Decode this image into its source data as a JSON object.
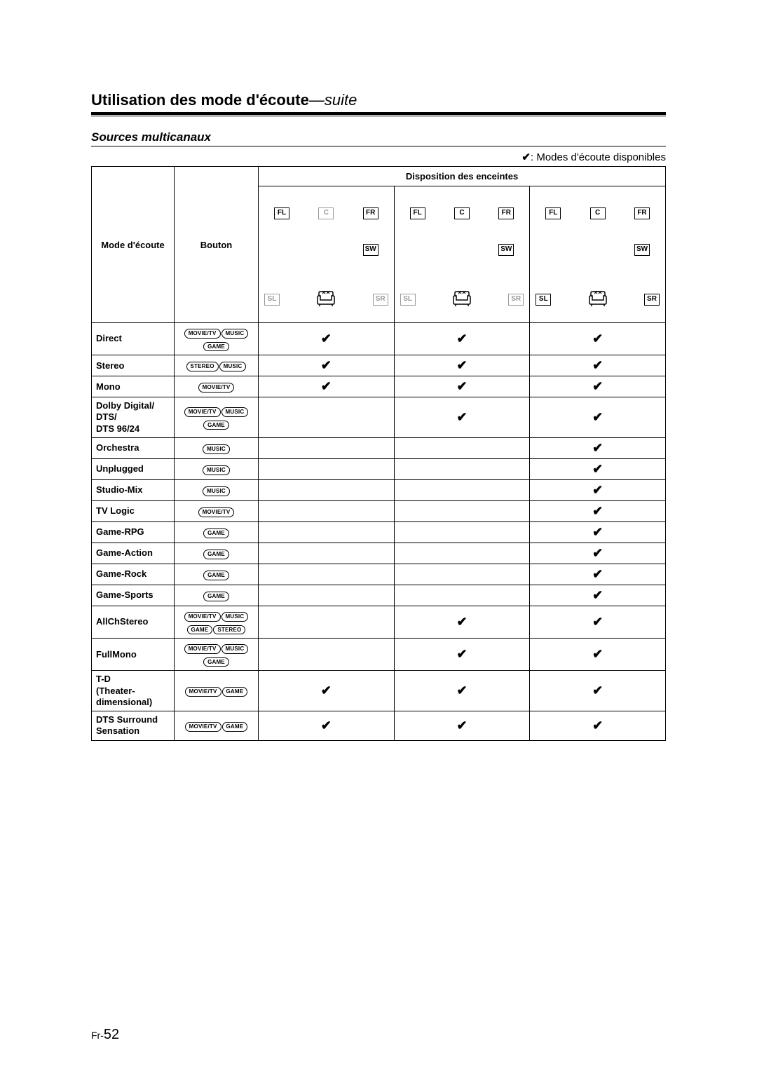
{
  "title_prefix": "Utilisation des mode d'écoute",
  "title_suffix": "—suite",
  "subtitle": "Sources multicanaux",
  "legend_text": ": Modes d'écoute disponibles",
  "checkmark": "✔",
  "header_mode": "Mode d'écoute",
  "header_bouton": "Bouton",
  "header_disposition": "Disposition des enceintes",
  "pills": {
    "movietv": "MOVIE/TV",
    "music": "MUSIC",
    "game": "GAME",
    "stereo": "STEREO"
  },
  "speaker_labels": {
    "fl": "FL",
    "fr": "FR",
    "c": "C",
    "sw": "SW",
    "sl": "SL",
    "sr": "SR"
  },
  "layouts": [
    {
      "active": {
        "fl": true,
        "c": false,
        "fr": true,
        "sw": true,
        "sl": false,
        "sr": false
      }
    },
    {
      "active": {
        "fl": true,
        "c": true,
        "fr": true,
        "sw": true,
        "sl": false,
        "sr": false
      }
    },
    {
      "active": {
        "fl": true,
        "c": true,
        "fr": true,
        "sw": true,
        "sl": true,
        "sr": true
      }
    }
  ],
  "rows": [
    {
      "mode": "Direct",
      "pills": [
        "movietv",
        "music",
        "game"
      ],
      "marks": [
        true,
        true,
        true
      ]
    },
    {
      "mode": "Stereo",
      "pills": [
        "stereo",
        "music"
      ],
      "marks": [
        true,
        true,
        true
      ]
    },
    {
      "mode": "Mono",
      "pills": [
        "movietv"
      ],
      "marks": [
        true,
        true,
        true
      ]
    },
    {
      "mode": "Dolby Digital/\nDTS/\nDTS 96/24",
      "pills": [
        "movietv",
        "music",
        "game"
      ],
      "marks": [
        false,
        true,
        true
      ]
    },
    {
      "mode": "Orchestra",
      "pills": [
        "music"
      ],
      "marks": [
        false,
        false,
        true
      ]
    },
    {
      "mode": "Unplugged",
      "pills": [
        "music"
      ],
      "marks": [
        false,
        false,
        true
      ]
    },
    {
      "mode": "Studio-Mix",
      "pills": [
        "music"
      ],
      "marks": [
        false,
        false,
        true
      ]
    },
    {
      "mode": "TV Logic",
      "pills": [
        "movietv"
      ],
      "marks": [
        false,
        false,
        true
      ]
    },
    {
      "mode": "Game-RPG",
      "pills": [
        "game"
      ],
      "marks": [
        false,
        false,
        true
      ]
    },
    {
      "mode": "Game-Action",
      "pills": [
        "game"
      ],
      "marks": [
        false,
        false,
        true
      ]
    },
    {
      "mode": "Game-Rock",
      "pills": [
        "game"
      ],
      "marks": [
        false,
        false,
        true
      ]
    },
    {
      "mode": "Game-Sports",
      "pills": [
        "game"
      ],
      "marks": [
        false,
        false,
        true
      ]
    },
    {
      "mode": "AllChStereo",
      "pills": [
        "movietv",
        "music",
        "game",
        "stereo"
      ],
      "marks": [
        false,
        true,
        true
      ]
    },
    {
      "mode": "FullMono",
      "pills": [
        "movietv",
        "music",
        "game"
      ],
      "marks": [
        false,
        true,
        true
      ]
    },
    {
      "mode": "T-D\n(Theater-dimensional)",
      "pills": [
        "movietv",
        "game"
      ],
      "marks": [
        true,
        true,
        true
      ]
    },
    {
      "mode": "DTS Surround Sensation",
      "pills": [
        "movietv",
        "game"
      ],
      "marks": [
        true,
        true,
        true
      ]
    }
  ],
  "page_prefix": "Fr-",
  "page_number": "52"
}
